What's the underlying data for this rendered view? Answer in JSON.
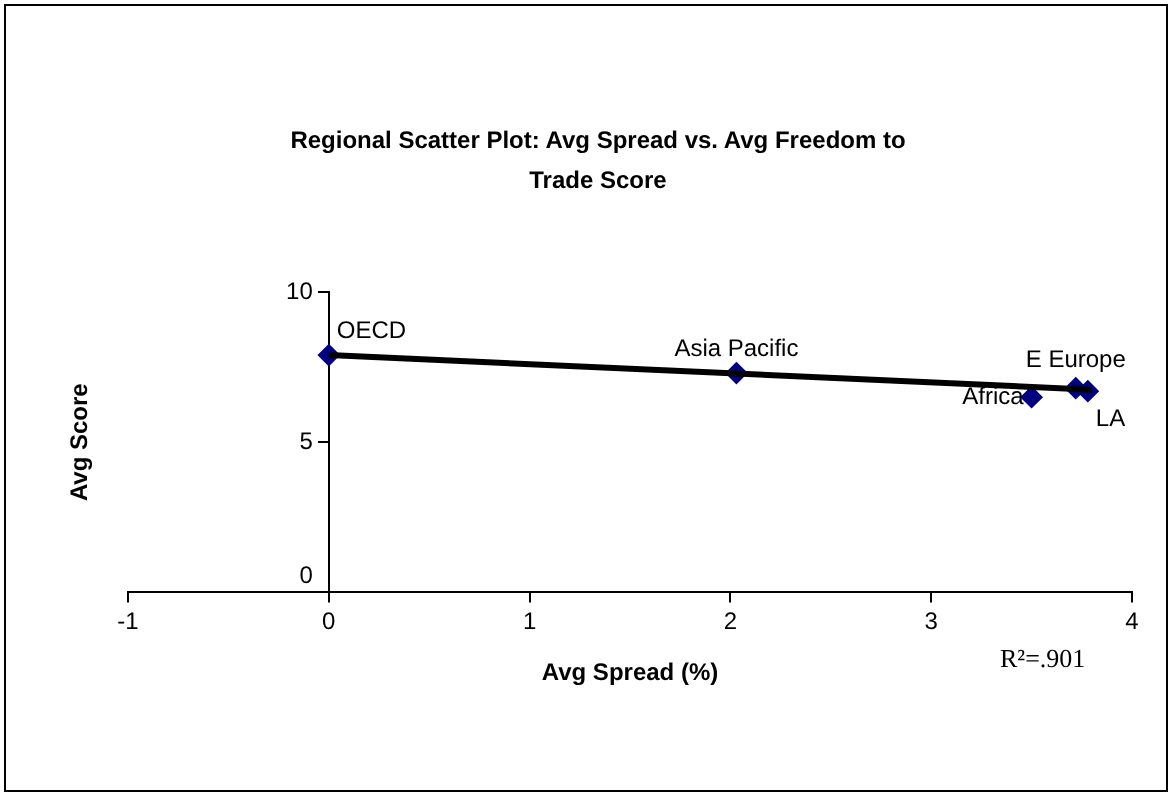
{
  "chart_data": {
    "type": "scatter",
    "title": "Regional Scatter Plot: Avg Spread vs. Avg Freedom to Trade Score",
    "xlabel": "Avg Spread (%)",
    "ylabel": "Avg Score",
    "series": [
      {
        "type": "scatter",
        "color": "#000080",
        "marker": "diamond",
        "x": [
          0,
          2.03,
          3.5,
          3.72,
          3.78
        ],
        "values": [
          7.9,
          7.3,
          6.5,
          6.8,
          6.7
        ]
      },
      {
        "type": "line",
        "color": "#000000",
        "marker": "none",
        "x": [
          0,
          3.8
        ],
        "values": [
          7.9,
          6.75
        ]
      }
    ],
    "xlim": [
      -1,
      4
    ],
    "xticks": [
      -1,
      0,
      1,
      2,
      3,
      4
    ],
    "ylim": [
      0,
      10
    ],
    "yticks": [
      0,
      5,
      10
    ],
    "grid": false,
    "legend": false,
    "annotations": [
      {
        "text": "OECD",
        "x": 0,
        "y": 7.9
      },
      {
        "text": "Asia Pacific",
        "x": 2.03,
        "y": 7.3
      },
      {
        "text": "Africa",
        "x": 3.5,
        "y": 6.5
      },
      {
        "text": "E Europe",
        "x": 3.72,
        "y": 6.8
      },
      {
        "text": "LA",
        "x": 3.78,
        "y": 6.7
      },
      "R²=.901"
    ]
  }
}
